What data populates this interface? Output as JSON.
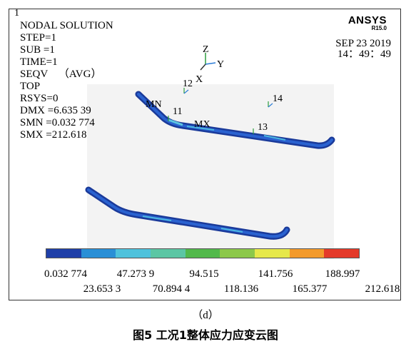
{
  "window_number": "1",
  "info": {
    "title": "NODAL SOLUTION",
    "step": "STEP=1",
    "sub": "SUB =1",
    "time": "TIME=1",
    "seqv": "SEQV    （AVG）",
    "view": "TOP",
    "rsys": "RSYS=0",
    "dmx": "DMX =6.635 39",
    "smn": "SMN =0.032 774",
    "smx": "SMX =212.618"
  },
  "logo": {
    "name": "ANSYS",
    "version": "R15.0"
  },
  "date": {
    "date": "SEP 23 2019",
    "time": "14：49：49"
  },
  "triad": {
    "z": "Z",
    "y": "Y",
    "x": "X"
  },
  "markers": {
    "mn": "MN",
    "mx": "MX",
    "n11": "11",
    "n12": "12",
    "n13": "13",
    "n14": "14"
  },
  "colorbar": {
    "colors": [
      "#1f3fa8",
      "#2a8fd6",
      "#4fc2dc",
      "#5cc6a4",
      "#52b94b",
      "#8cc84a",
      "#e6e84a",
      "#f39a2b",
      "#e43a2a"
    ],
    "labels_top": [
      "0.032 774",
      "47.273 9",
      "94.515",
      "141.756",
      "188.997"
    ],
    "labels_bottom": [
      "23.653 3",
      "70.894 4",
      "118.136",
      "165.377",
      "212.618"
    ]
  },
  "subcaption": "（d）",
  "caption": "图5   工况1整体应力应变云图"
}
